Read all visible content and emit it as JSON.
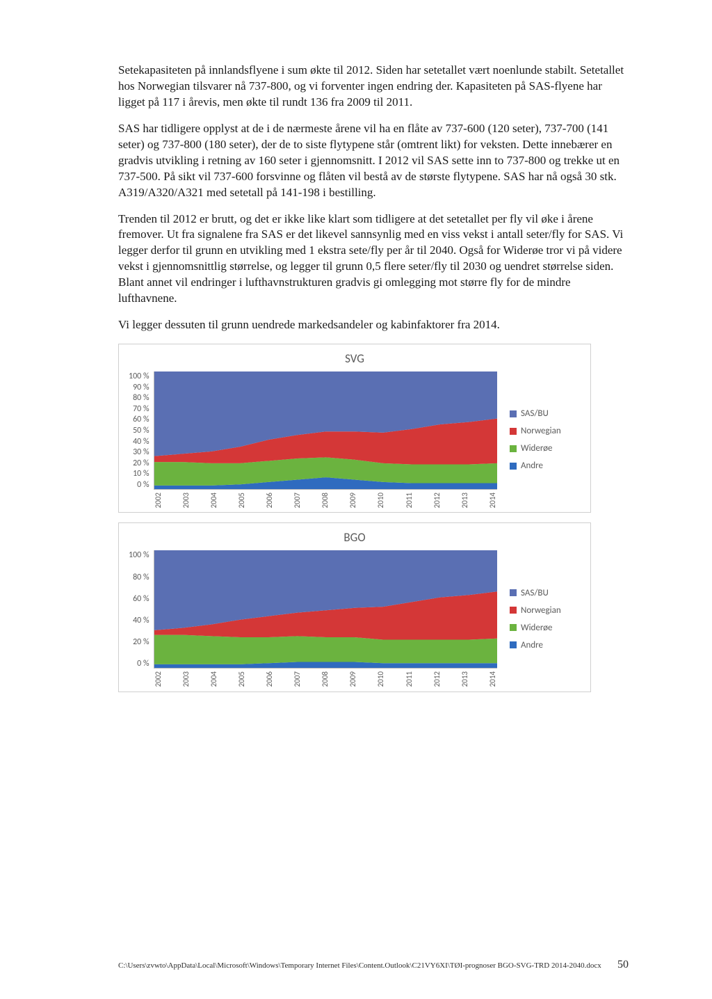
{
  "paragraphs": {
    "p1": "Setekapasiteten på innlandsflyene i sum økte til 2012. Siden har setetallet vært noenlunde stabilt. Setetallet hos Norwegian tilsvarer nå 737-800, og vi forventer ingen endring der. Kapasiteten på SAS-flyene har ligget på 117 i årevis, men økte til rundt 136 fra 2009 til 2011.",
    "p2": "SAS har tidligere opplyst at de i de nærmeste årene vil ha en flåte av 737-600 (120 seter), 737-700 (141 seter) og 737-800 (180 seter), der de to siste flytypene står (omtrent likt) for veksten. Dette innebærer en gradvis utvikling i retning av 160 seter i gjennomsnitt. I 2012 vil SAS sette inn to 737-800 og trekke ut en 737-500. På sikt vil 737-600 forsvinne og flåten vil bestå av de største flytypene. SAS har nå også 30 stk. A319/A320/A321 med setetall på 141-198 i bestilling.",
    "p3": "Trenden til 2012 er brutt, og det er ikke like klart som tidligere at det setetallet per fly vil øke i årene fremover. Ut fra signalene fra SAS er det likevel sannsynlig med en viss vekst i antall seter/fly for SAS. Vi legger derfor til grunn en utvikling med 1 ekstra sete/fly per år til 2040. Også for Widerøe tror vi på videre vekst i gjennomsnittlig størrelse, og legger til grunn 0,5 flere seter/fly til 2030 og uendret størrelse siden. Blant annet vil endringer i lufthavnstrukturen gradvis gi omlegging mot større fly for de mindre lufthavnene.",
    "p4": "Vi legger dessuten til grunn uendrede markedsandeler og kabinfaktorer fra 2014."
  },
  "chart_colors": {
    "sas": "#5a6fb3",
    "norwegian": "#d43737",
    "wideroe": "#6bb33f",
    "andre": "#2f6bbf",
    "grid": "#d6d6d6",
    "axis": "#b8b8b8",
    "text": "#5a5a5a"
  },
  "legend_labels": {
    "sas": "SAS/BU",
    "norwegian": "Norwegian",
    "wideroe": "Widerøe",
    "andre": "Andre"
  },
  "svg_chart": {
    "title": "SVG",
    "type": "stacked-area",
    "ylim": [
      0,
      100
    ],
    "ytick_step": 10,
    "yticks": [
      "100 %",
      "90 %",
      "80 %",
      "70 %",
      "60 %",
      "50 %",
      "40 %",
      "30 %",
      "20 %",
      "10 %",
      "0 %"
    ],
    "categories": [
      "2002",
      "2003",
      "2004",
      "2005",
      "2006",
      "2007",
      "2008",
      "2009",
      "2010",
      "2011",
      "2012",
      "2013",
      "2014"
    ],
    "series": {
      "andre": [
        3,
        3,
        3,
        4,
        6,
        8,
        10,
        8,
        6,
        5,
        5,
        5,
        5
      ],
      "wideroe": [
        20,
        20,
        19,
        18,
        18,
        18,
        17,
        17,
        16,
        16,
        16,
        16,
        17
      ],
      "norwegian": [
        5,
        7,
        10,
        14,
        18,
        20,
        22,
        24,
        26,
        30,
        34,
        36,
        38
      ],
      "sas": [
        72,
        70,
        68,
        64,
        58,
        54,
        51,
        51,
        52,
        49,
        45,
        43,
        40
      ]
    }
  },
  "bgo_chart": {
    "title": "BGO",
    "type": "stacked-area",
    "ylim": [
      0,
      100
    ],
    "ytick_step": 20,
    "yticks": [
      "100 %",
      "80 %",
      "60 %",
      "40 %",
      "20 %",
      "0 %"
    ],
    "categories": [
      "2002",
      "2003",
      "2004",
      "2005",
      "2006",
      "2007",
      "2008",
      "2009",
      "2010",
      "2011",
      "2012",
      "2013",
      "2014"
    ],
    "series": {
      "andre": [
        3,
        3,
        3,
        3,
        4,
        5,
        5,
        5,
        4,
        4,
        4,
        4,
        4
      ],
      "wideroe": [
        25,
        25,
        24,
        23,
        22,
        22,
        21,
        21,
        20,
        20,
        20,
        20,
        21
      ],
      "norwegian": [
        4,
        6,
        10,
        15,
        18,
        20,
        23,
        25,
        28,
        32,
        36,
        38,
        40
      ],
      "sas": [
        68,
        66,
        63,
        59,
        56,
        53,
        51,
        49,
        48,
        44,
        40,
        38,
        35
      ]
    }
  },
  "footer": {
    "path": "C:\\Users\\zvwto\\AppData\\Local\\Microsoft\\Windows\\Temporary Internet Files\\Content.Outlook\\C21VY6XI\\TØI-prognoser BGO-SVG-TRD 2014-2040.docx",
    "page": "50"
  }
}
